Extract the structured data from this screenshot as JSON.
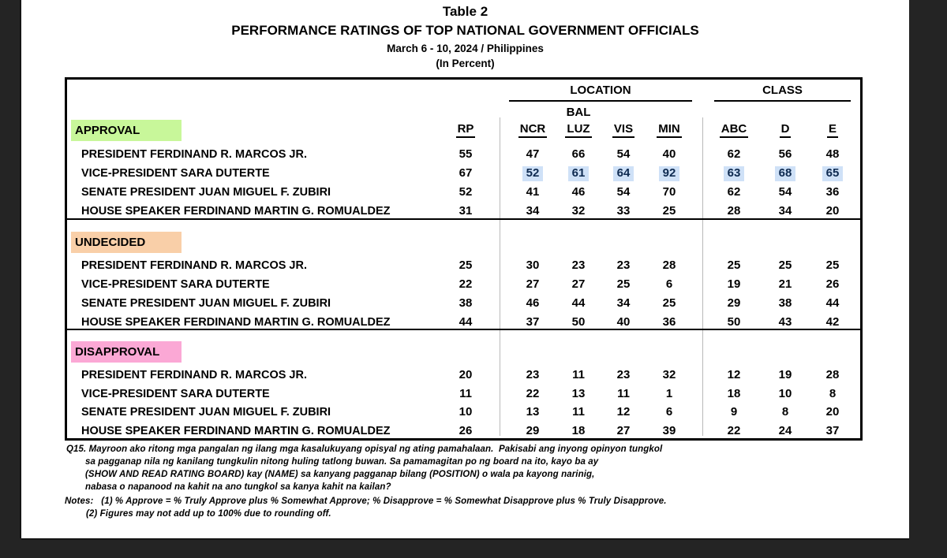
{
  "header": {
    "table_label": "Table 2",
    "title": "PERFORMANCE RATINGS OF TOP NATIONAL GOVERNMENT OFFICIALS",
    "subtitle": "March 6 - 10, 2024 / Philippines",
    "unit_note": "(In Percent)"
  },
  "table": {
    "group_headers": [
      {
        "label": "LOCATION"
      },
      {
        "label": "CLASS"
      }
    ],
    "bal_label": "BAL",
    "columns": [
      {
        "key": "rp",
        "label": "RP"
      },
      {
        "key": "ncr",
        "label": "NCR"
      },
      {
        "key": "luz",
        "label": "LUZ"
      },
      {
        "key": "vis",
        "label": "VIS"
      },
      {
        "key": "min",
        "label": "MIN"
      },
      {
        "key": "abc",
        "label": "ABC"
      },
      {
        "key": "d",
        "label": "D"
      },
      {
        "key": "e",
        "label": "E"
      }
    ],
    "value_highlight_color": "#cfe1f7",
    "value_highlight_text": "#0e2a50",
    "sections": [
      {
        "label": "APPROVAL",
        "label_bg": "#c8f79a",
        "rows": [
          {
            "name": "PRESIDENT FERDINAND R. MARCOS JR.",
            "values": [
              "55",
              "47",
              "66",
              "54",
              "40",
              "62",
              "56",
              "48"
            ]
          },
          {
            "name": "VICE-PRESIDENT SARA DUTERTE",
            "values": [
              "67",
              "52",
              "61",
              "64",
              "92",
              "63",
              "68",
              "65"
            ],
            "value_highlight_cols": [
              1,
              2,
              3,
              4,
              5,
              6,
              7
            ]
          },
          {
            "name": "SENATE PRESIDENT JUAN MIGUEL F. ZUBIRI",
            "values": [
              "52",
              "41",
              "46",
              "54",
              "70",
              "62",
              "54",
              "36"
            ]
          },
          {
            "name": "HOUSE SPEAKER FERDINAND MARTIN G. ROMUALDEZ",
            "values": [
              "31",
              "34",
              "32",
              "33",
              "25",
              "28",
              "34",
              "20"
            ]
          }
        ]
      },
      {
        "label": "UNDECIDED",
        "label_bg": "#f9cfa8",
        "rows": [
          {
            "name": "PRESIDENT FERDINAND R. MARCOS JR.",
            "values": [
              "25",
              "30",
              "23",
              "23",
              "28",
              "25",
              "25",
              "25"
            ]
          },
          {
            "name": "VICE-PRESIDENT SARA DUTERTE",
            "values": [
              "22",
              "27",
              "27",
              "25",
              "6",
              "19",
              "21",
              "26"
            ]
          },
          {
            "name": "SENATE PRESIDENT JUAN MIGUEL F. ZUBIRI",
            "values": [
              "38",
              "46",
              "44",
              "34",
              "25",
              "29",
              "38",
              "44"
            ]
          },
          {
            "name": "HOUSE SPEAKER FERDINAND MARTIN G. ROMUALDEZ",
            "values": [
              "44",
              "37",
              "50",
              "40",
              "36",
              "50",
              "43",
              "42"
            ]
          }
        ]
      },
      {
        "label": "DISAPPROVAL",
        "label_bg": "#fba8d5",
        "rows": [
          {
            "name": "PRESIDENT FERDINAND R. MARCOS JR.",
            "values": [
              "20",
              "23",
              "11",
              "23",
              "32",
              "12",
              "19",
              "28"
            ]
          },
          {
            "name": "VICE-PRESIDENT SARA DUTERTE",
            "values": [
              "11",
              "22",
              "13",
              "11",
              "1",
              "18",
              "10",
              "8"
            ]
          },
          {
            "name": "SENATE PRESIDENT JUAN MIGUEL F. ZUBIRI",
            "values": [
              "10",
              "13",
              "11",
              "12",
              "6",
              "9",
              "8",
              "20"
            ]
          },
          {
            "name": "HOUSE SPEAKER FERDINAND MARTIN G. ROMUALDEZ",
            "values": [
              "26",
              "29",
              "18",
              "27",
              "39",
              "22",
              "24",
              "37"
            ]
          }
        ]
      }
    ]
  },
  "footnotes": {
    "q15_lines": [
      "Q15. Mayroon ako ritong mga pangalan ng ilang mga kasalukuyang opisyal ng ating pamahalaan.  Pakisabi ang inyong opinyon tungkol",
      "sa pagganap nila ng kanilang tungkulin nitong huling tatlong buwan. Sa pamamagitan po ng board na ito, kayo ba ay",
      "(SHOW AND READ RATING BOARD) kay (NAME) sa kanyang pagganap bilang (POSITION) o wala pa kayong narinig,",
      "nabasa o napanood na kahit na ano tungkol sa kanya kahit na kailan?"
    ],
    "notes_lines": [
      "Notes:   (1) % Approve = % Truly Approve plus % Somewhat Approve; % Disapprove = % Somewhat Disapprove plus % Truly Disapprove.",
      "(2) Figures may not add up to 100% due to rounding off."
    ]
  },
  "colors": {
    "viewer_background": "#242424",
    "page_background": "#ffffff",
    "approval_highlight": "#c8f79a",
    "undecided_highlight": "#f9cfa8",
    "disapproval_highlight": "#fba8d5",
    "cell_selection_highlight": "#cfe1f7"
  }
}
